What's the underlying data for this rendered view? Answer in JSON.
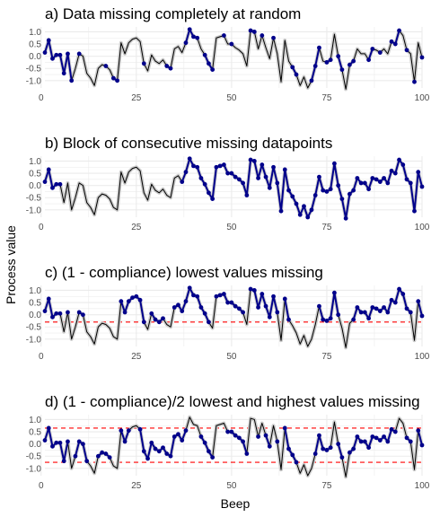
{
  "figure": {
    "xlabel": "Beep",
    "ylabel": "Process value"
  },
  "chart_data": [
    {
      "type": "line",
      "title": "a) Data missing completely at random",
      "xlabel": "Beep",
      "ylabel": "Process value",
      "xlim": [
        1,
        100
      ],
      "ylim": [
        -1.3,
        1.2
      ],
      "x_ticks": [
        0,
        25,
        50,
        75,
        100
      ],
      "y_ticks": [
        1.0,
        0.5,
        0.0,
        -0.5,
        -1.0
      ],
      "y_tick_labels": [
        "1.0",
        "0.5",
        "0.0",
        "-0.5",
        "-1.0"
      ],
      "grid": true,
      "missing_beeps": [
        9,
        11,
        12,
        13,
        14,
        15,
        16,
        18,
        21,
        22,
        23,
        24,
        25,
        26,
        28,
        29,
        30,
        31,
        32,
        35,
        36,
        37,
        42,
        46,
        47,
        49,
        51,
        52,
        53,
        54,
        57,
        59,
        60,
        62,
        63,
        64,
        65,
        68,
        69,
        70,
        74,
        77,
        80,
        83,
        84,
        85,
        88,
        90,
        91,
        95,
        97,
        99
      ]
    },
    {
      "type": "line",
      "title": "b) Block of consecutive missing datapoints",
      "xlabel": "Beep",
      "ylabel": "Process value",
      "xlim": [
        1,
        100
      ],
      "ylim": [
        -1.3,
        1.2
      ],
      "x_ticks": [
        0,
        25,
        50,
        75,
        100
      ],
      "y_ticks": [
        1.0,
        0.5,
        0.0,
        -0.5,
        -1.0
      ],
      "y_tick_labels": [
        "1.0",
        "0.5",
        "0.0",
        "-0.5",
        "-1.0"
      ],
      "grid": true,
      "missing_block": [
        6,
        36
      ]
    },
    {
      "type": "line",
      "title": "c) (1 - compliance) lowest values missing",
      "xlabel": "Beep",
      "ylabel": "Process value",
      "xlim": [
        1,
        100
      ],
      "ylim": [
        -1.3,
        1.2
      ],
      "x_ticks": [
        0,
        25,
        50,
        75,
        100
      ],
      "y_ticks": [
        1.0,
        0.5,
        0.0,
        -0.5,
        -1.0
      ],
      "y_tick_labels": [
        "1.0",
        "0.5",
        "0.0",
        "-0.5",
        "-1.0"
      ],
      "grid": true,
      "threshold_lines": [
        -0.3
      ],
      "threshold_color": "#ff0000",
      "missing_rule": "values below -0.3"
    },
    {
      "type": "line",
      "title": "d) (1 - compliance)/2 lowest and highest values missing",
      "xlabel": "Beep",
      "ylabel": "Process value",
      "xlim": [
        1,
        100
      ],
      "ylim": [
        -1.3,
        1.2
      ],
      "x_ticks": [
        0,
        25,
        50,
        75,
        100
      ],
      "y_ticks": [
        1.0,
        0.5,
        0.0,
        -0.5,
        -1.0
      ],
      "y_tick_labels": [
        "1.0",
        "0.5",
        "0.0",
        "-0.5",
        "-1.0"
      ],
      "grid": true,
      "threshold_lines": [
        0.65,
        -0.75
      ],
      "threshold_color": "#ff0000",
      "missing_rule": "values below -0.75 or above 0.65"
    }
  ],
  "series": {
    "beeps": [
      1,
      2,
      3,
      4,
      5,
      6,
      7,
      8,
      9,
      10,
      11,
      12,
      13,
      14,
      15,
      16,
      17,
      18,
      19,
      20,
      21,
      22,
      23,
      24,
      25,
      26,
      27,
      28,
      29,
      30,
      31,
      32,
      33,
      34,
      35,
      36,
      37,
      38,
      39,
      40,
      41,
      42,
      43,
      44,
      45,
      46,
      47,
      48,
      49,
      50,
      51,
      52,
      53,
      54,
      55,
      56,
      57,
      58,
      59,
      60,
      61,
      62,
      63,
      64,
      65,
      66,
      67,
      68,
      69,
      70,
      71,
      72,
      73,
      74,
      75,
      76,
      77,
      78,
      79,
      80,
      81,
      82,
      83,
      84,
      85,
      86,
      87,
      88,
      89,
      90,
      91,
      92,
      93,
      94,
      95,
      96,
      97,
      98,
      99,
      100
    ],
    "values": [
      0.15,
      0.65,
      -0.1,
      0.05,
      0.05,
      -0.7,
      0.1,
      -1.0,
      -0.5,
      0.1,
      0.0,
      -0.7,
      -0.9,
      -1.2,
      -0.5,
      -0.35,
      -0.4,
      -0.55,
      -0.9,
      -1.0,
      0.55,
      0.1,
      0.55,
      0.7,
      0.75,
      0.6,
      -0.3,
      -0.6,
      0.05,
      -0.2,
      -0.3,
      -0.15,
      -0.4,
      -0.5,
      0.3,
      0.4,
      0.15,
      0.55,
      1.1,
      0.8,
      0.75,
      0.3,
      0.05,
      -0.3,
      -0.55,
      0.75,
      0.8,
      0.85,
      0.5,
      0.5,
      0.35,
      0.25,
      0.1,
      -0.4,
      1.05,
      1.0,
      0.3,
      0.85,
      0.35,
      -0.1,
      0.75,
      0.1,
      -1.05,
      0.65,
      -0.2,
      -0.45,
      -0.75,
      -1.2,
      -0.85,
      -1.3,
      -1.0,
      -0.4,
      0.35,
      -0.2,
      -0.25,
      -0.15,
      0.9,
      0.0,
      -0.55,
      -1.35,
      -0.35,
      -0.2,
      0.3,
      0.1,
      0.1,
      -0.15,
      0.3,
      0.25,
      0.15,
      0.3,
      0.1,
      0.6,
      0.5,
      1.05,
      0.85,
      0.25,
      0.1,
      -1.05,
      0.55,
      -0.05
    ]
  },
  "colors": {
    "observed": "#00008b",
    "missing_line": "#000000",
    "ribbon": "#cccccc",
    "threshold": "#ff0000",
    "grid": "#ebebeb"
  }
}
